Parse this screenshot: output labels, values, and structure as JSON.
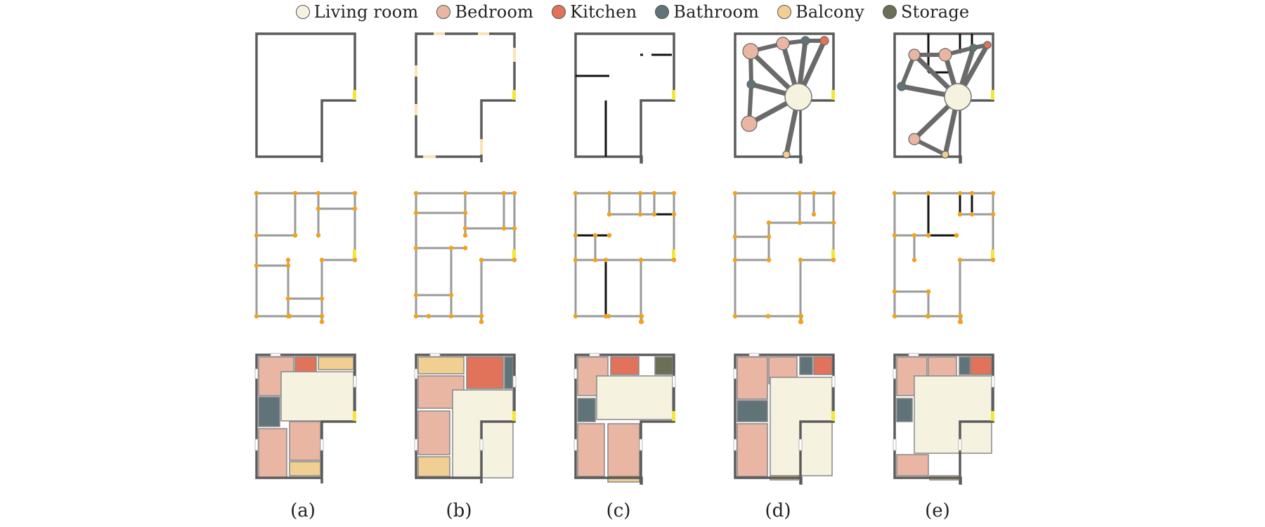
{
  "legend": [
    {
      "label": "Living room",
      "color": "#f5f2e0"
    },
    {
      "label": "Bedroom",
      "color": "#e9b6a4"
    },
    {
      "label": "Kitchen",
      "color": "#e0735a"
    },
    {
      "label": "Bathroom",
      "color": "#5f7378"
    },
    {
      "label": "Balcony",
      "color": "#f1ce92"
    },
    {
      "label": "Storage",
      "color": "#6a6f55"
    }
  ],
  "captions": [
    "(a)",
    "(b)",
    "(c)",
    "(d)",
    "(e)"
  ],
  "colors": {
    "boundary": "#5b5b5b",
    "inner_wall": "#9a9a9a",
    "constraint_wall": "#111111",
    "junction": "#f0a21e",
    "front_door": "#f4e63a",
    "window": "#fbe3b4",
    "graph_edge": "#6a6a6a"
  }
}
